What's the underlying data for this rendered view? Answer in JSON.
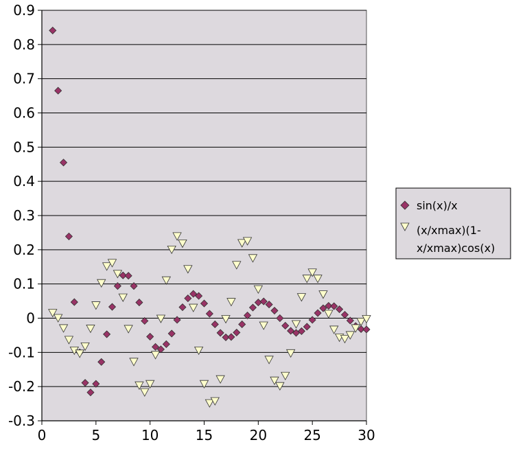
{
  "chart_data": {
    "type": "scatter",
    "title": "",
    "xlabel": "",
    "ylabel": "",
    "xlim": [
      0,
      30
    ],
    "ylim": [
      -0.3,
      0.9
    ],
    "x_ticks": [
      "0",
      "5",
      "10",
      "15",
      "20",
      "25",
      "30"
    ],
    "y_ticks": [
      "0.9",
      "0.8",
      "0.7",
      "0.6",
      "0.5",
      "0.4",
      "0.3",
      "0.2",
      "0.1",
      "0",
      "-0.1",
      "-0.2",
      "-0.3"
    ],
    "grid": "horizontal",
    "plot_background": "#ddd9de",
    "legend_position": "right",
    "series": [
      {
        "name": "sin(x)/x",
        "marker": "diamond",
        "color": "#993366",
        "x": [
          1,
          1.5,
          2,
          2.5,
          3,
          3.5,
          4,
          4.5,
          5,
          5.5,
          6,
          6.5,
          7,
          7.5,
          8,
          8.5,
          9,
          9.5,
          10,
          10.5,
          11,
          11.5,
          12,
          12.5,
          13,
          13.5,
          14,
          14.5,
          15,
          15.5,
          16,
          16.5,
          17,
          17.5,
          18,
          18.5,
          19,
          19.5,
          20,
          20.5,
          21,
          21.5,
          22,
          22.5,
          23,
          23.5,
          24,
          24.5,
          25,
          25.5,
          26,
          26.5,
          27,
          27.5,
          28,
          28.5,
          29,
          29.5,
          30
        ],
        "y": [
          0.841,
          0.665,
          0.455,
          0.239,
          0.047,
          -0.1,
          -0.189,
          -0.217,
          -0.192,
          -0.128,
          -0.047,
          0.033,
          0.094,
          0.125,
          0.124,
          0.094,
          0.046,
          -0.008,
          -0.054,
          -0.084,
          -0.091,
          -0.076,
          -0.045,
          -0.005,
          0.032,
          0.058,
          0.071,
          0.065,
          0.043,
          0.013,
          -0.018,
          -0.043,
          -0.056,
          -0.055,
          -0.042,
          -0.018,
          0.008,
          0.031,
          0.046,
          0.049,
          0.04,
          0.022,
          0.0,
          -0.022,
          -0.037,
          -0.043,
          -0.038,
          -0.025,
          -0.005,
          0.015,
          0.029,
          0.036,
          0.035,
          0.026,
          0.01,
          -0.007,
          -0.023,
          -0.032,
          -0.033
        ]
      },
      {
        "name": "(x/xmax)(1-x/xmax)cos(x)",
        "marker": "triangle-down",
        "color": "#ffffcc",
        "x": [
          1,
          1.5,
          2,
          2.5,
          3,
          3.5,
          4,
          4.5,
          5,
          5.5,
          6,
          6.5,
          7,
          7.5,
          8,
          8.5,
          9,
          9.5,
          10,
          10.5,
          11,
          11.5,
          12,
          12.5,
          13,
          13.5,
          14,
          14.5,
          15,
          15.5,
          16,
          16.5,
          17,
          17.5,
          18,
          18.5,
          19,
          19.5,
          20,
          20.5,
          21,
          21.5,
          22,
          22.5,
          23,
          23.5,
          24,
          24.5,
          25,
          25.5,
          26,
          26.5,
          27,
          27.5,
          28,
          28.5,
          29,
          29.5,
          30
        ],
        "y": [
          0.018,
          0.003,
          -0.027,
          -0.061,
          -0.092,
          -0.101,
          -0.08,
          -0.028,
          0.04,
          0.105,
          0.154,
          0.164,
          0.132,
          0.063,
          -0.029,
          -0.125,
          -0.194,
          -0.214,
          -0.19,
          -0.105,
          0.001,
          0.113,
          0.203,
          0.242,
          0.221,
          0.146,
          0.033,
          -0.092,
          -0.19,
          -0.246,
          -0.24,
          -0.176,
          0.0,
          0.05,
          0.158,
          0.222,
          0.228,
          0.178,
          0.087,
          -0.019,
          -0.119,
          -0.18,
          -0.196,
          -0.166,
          -0.1,
          -0.015,
          0.064,
          0.118,
          0.136,
          0.118,
          0.072,
          0.015,
          -0.031,
          -0.054,
          -0.058,
          -0.047,
          -0.027,
          -0.008,
          0.0
        ]
      }
    ]
  }
}
